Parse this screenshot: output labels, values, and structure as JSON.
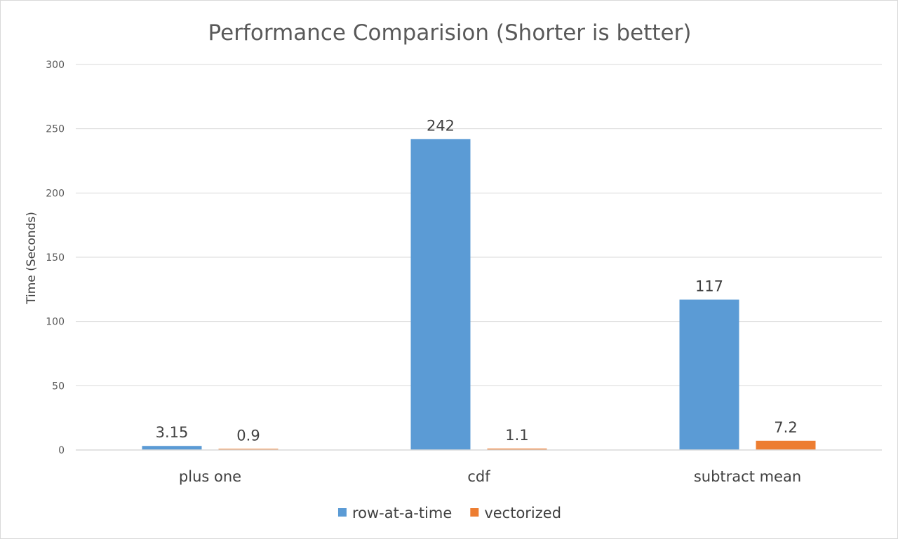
{
  "chart_data": {
    "type": "bar",
    "title": "Performance Comparision (Shorter is better)",
    "xlabel": "",
    "ylabel": "Time (Seconds)",
    "ylim": [
      0,
      300
    ],
    "yticks": [
      0,
      50,
      100,
      150,
      200,
      250,
      300
    ],
    "categories": [
      "plus one",
      "cdf",
      "subtract mean"
    ],
    "series": [
      {
        "name": "row-at-a-time",
        "color": "#5b9bd5",
        "values": [
          3.15,
          242,
          117
        ],
        "labels": [
          "3.15",
          "242",
          "117"
        ]
      },
      {
        "name": "vectorized",
        "color": "#ed7d31",
        "values": [
          0.9,
          1.1,
          7.2
        ],
        "labels": [
          "0.9",
          "1.1",
          "7.2"
        ]
      }
    ],
    "grid": true,
    "legend": "bottom"
  }
}
